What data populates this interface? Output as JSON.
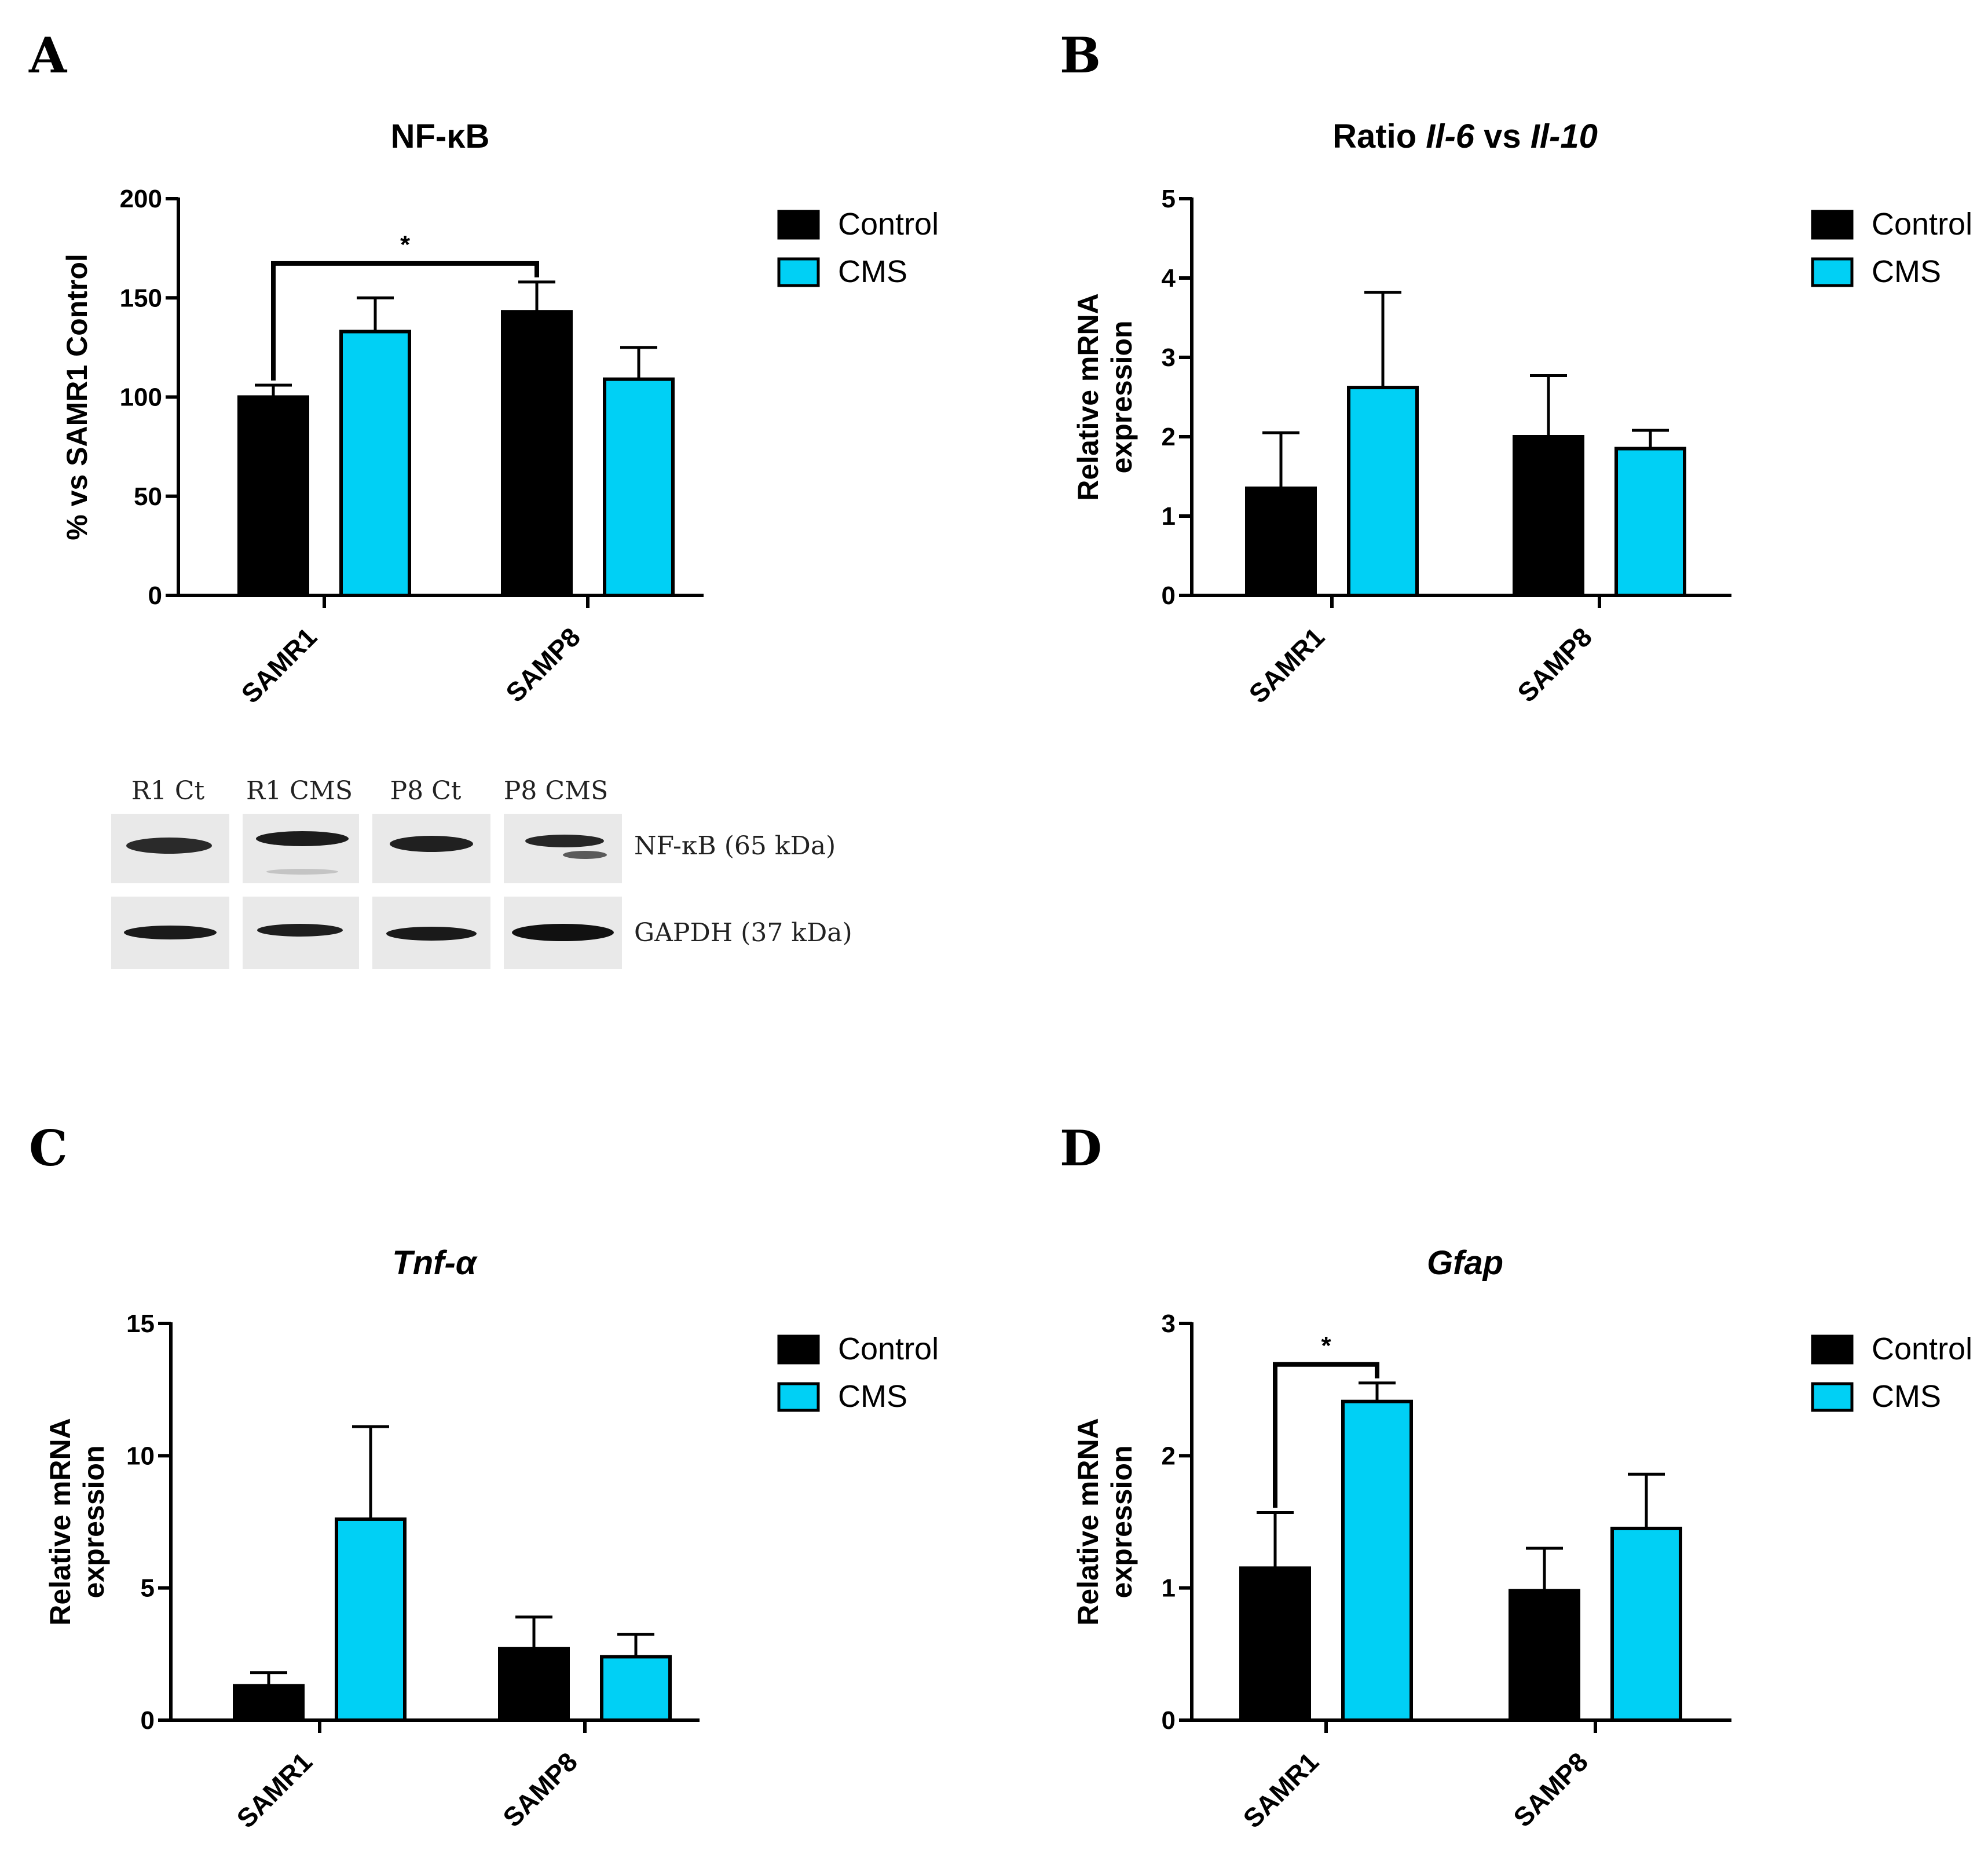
{
  "colors": {
    "control": "#000000",
    "cms": "#00d0f5",
    "axis": "#000000"
  },
  "chart_data": [
    {
      "panel": "A",
      "type": "bar",
      "title": {
        "parts": [
          {
            "text": "NF-κB",
            "italic": false
          }
        ]
      },
      "ylabel_lines": [
        "% vs SAMR1 Control"
      ],
      "ylim": [
        0,
        200
      ],
      "yticks": [
        "0",
        "50",
        "100",
        "150",
        "200"
      ],
      "categories": [
        "SAMR1",
        "SAMP8"
      ],
      "series": [
        {
          "name": "Control",
          "values": [
            100,
            143
          ],
          "errors": [
            6,
            15
          ]
        },
        {
          "name": "CMS",
          "values": [
            133,
            109
          ],
          "errors": [
            17,
            16
          ]
        }
      ],
      "significance": [
        {
          "from": [
            0,
            0
          ],
          "to": [
            1,
            0
          ],
          "label": "*"
        }
      ],
      "legend": [
        "Control",
        "CMS"
      ]
    },
    {
      "panel": "B",
      "type": "bar",
      "title": {
        "parts": [
          {
            "text": "Ratio ",
            "italic": false
          },
          {
            "text": "Il-6",
            "italic": true
          },
          {
            "text": " vs ",
            "italic": false
          },
          {
            "text": "Il-10",
            "italic": true
          }
        ]
      },
      "ylabel_lines": [
        "Relative mRNA",
        "expression"
      ],
      "ylim": [
        0,
        5
      ],
      "yticks": [
        "0",
        "1",
        "2",
        "3",
        "4",
        "5"
      ],
      "categories": [
        "SAMR1",
        "SAMP8"
      ],
      "series": [
        {
          "name": "Control",
          "values": [
            1.35,
            2.0
          ],
          "errors": [
            0.7,
            0.77
          ]
        },
        {
          "name": "CMS",
          "values": [
            2.62,
            1.85
          ],
          "errors": [
            1.2,
            0.23
          ]
        }
      ],
      "significance": [],
      "legend": [
        "Control",
        "CMS"
      ]
    },
    {
      "panel": "C",
      "type": "bar",
      "title": {
        "parts": [
          {
            "text": "Tnf-α",
            "italic": true
          }
        ]
      },
      "ylabel_lines": [
        "Relative mRNA",
        "expression"
      ],
      "ylim": [
        0,
        15
      ],
      "yticks": [
        "0",
        "5",
        "10",
        "15"
      ],
      "categories": [
        "SAMR1",
        "SAMP8"
      ],
      "series": [
        {
          "name": "Control",
          "values": [
            1.3,
            2.7
          ],
          "errors": [
            0.5,
            1.2
          ]
        },
        {
          "name": "CMS",
          "values": [
            7.6,
            2.4
          ],
          "errors": [
            3.5,
            0.85
          ]
        }
      ],
      "significance": [],
      "legend": [
        "Control",
        "CMS"
      ]
    },
    {
      "panel": "D",
      "type": "bar",
      "title": {
        "parts": [
          {
            "text": "Gfap",
            "italic": true
          }
        ]
      },
      "ylabel_lines": [
        "Relative mRNA",
        "expression"
      ],
      "ylim": [
        0,
        3
      ],
      "yticks": [
        "0",
        "1",
        "2",
        "3"
      ],
      "categories": [
        "SAMR1",
        "SAMP8"
      ],
      "series": [
        {
          "name": "Control",
          "values": [
            1.15,
            0.98
          ],
          "errors": [
            0.42,
            0.32
          ]
        },
        {
          "name": "CMS",
          "values": [
            2.41,
            1.45
          ],
          "errors": [
            0.14,
            0.41
          ]
        }
      ],
      "significance": [
        {
          "from": [
            0,
            0
          ],
          "to": [
            0,
            1
          ],
          "label": "*"
        }
      ],
      "legend": [
        "Control",
        "CMS"
      ]
    }
  ],
  "blot": {
    "lanes": [
      "R1 Ct",
      "R1 CMS",
      "P8 Ct",
      "P8 CMS"
    ],
    "rows": [
      "NF-κB (65 kDa)",
      "GAPDH (37 kDa)"
    ]
  }
}
